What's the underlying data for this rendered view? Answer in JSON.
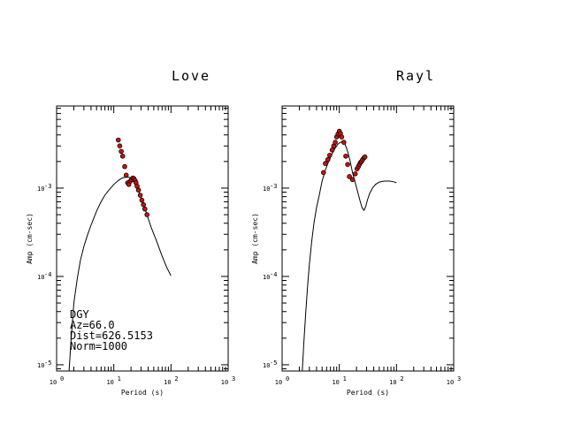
{
  "chart_data": [
    {
      "type": "scatter",
      "title": "Love",
      "xlabel": "Period (s)",
      "ylabel": "Amp (cm-sec)",
      "xscale": "log",
      "yscale": "log",
      "xlim": [
        1,
        1000
      ],
      "ylim": [
        8.5e-06,
        0.0085
      ],
      "xticks": [
        {
          "value": 1,
          "base": "10",
          "exp": "0"
        },
        {
          "value": 10,
          "base": "10",
          "exp": "1"
        },
        {
          "value": 100,
          "base": "10",
          "exp": "2"
        },
        {
          "value": 1000,
          "base": "10",
          "exp": "3"
        }
      ],
      "yticks": [
        {
          "value": 1e-05,
          "base": "10",
          "exp": "-5"
        },
        {
          "value": 0.0001,
          "base": "10",
          "exp": "-4"
        },
        {
          "value": 0.001,
          "base": "10",
          "exp": "-3"
        }
      ],
      "annotation": [
        "DGY",
        "Az=66.0",
        "Dist=626.5153",
        "Norm=1000"
      ],
      "marker_color": "#cc1111",
      "series": [
        {
          "kind": "line",
          "x": [
            1.65,
            1.8,
            2.0,
            2.3,
            2.6,
            3.0,
            3.5,
            4.0,
            5.0,
            6.0,
            7.0,
            8.0,
            10.0,
            12.0,
            14.0,
            16.0,
            18.0,
            20.0,
            22.0,
            25.0,
            28.0,
            32.0,
            38.0,
            45.0,
            55.0,
            70.0,
            85.0,
            100.0
          ],
          "y": [
            8.5e-06,
            2e-05,
            5e-05,
            9.5e-05,
            0.00015,
            0.00022,
            0.0003,
            0.00038,
            0.00055,
            0.0007,
            0.00083,
            0.00093,
            0.0011,
            0.00122,
            0.0013,
            0.00133,
            0.00133,
            0.0013,
            0.0012,
            0.00105,
            0.00088,
            0.0007,
            0.0005,
            0.00036,
            0.00026,
            0.00017,
            0.000125,
            0.000102
          ]
        },
        {
          "kind": "points",
          "x": [
            12.0,
            12.7,
            13.5,
            14.3,
            15.5,
            16.5,
            17.5,
            18.3,
            19.5,
            20.5,
            21.5,
            22.5,
            23.5,
            24.5,
            25.5,
            27.0,
            29.0,
            31.0,
            33.0,
            35.0,
            38.0
          ],
          "y": [
            0.0035,
            0.003,
            0.0026,
            0.0023,
            0.00175,
            0.0014,
            0.00115,
            0.0011,
            0.0012,
            0.00125,
            0.0013,
            0.00128,
            0.00122,
            0.00115,
            0.00105,
            0.00095,
            0.00083,
            0.00073,
            0.00065,
            0.00058,
            0.0005
          ]
        }
      ]
    },
    {
      "type": "scatter",
      "title": "Rayl",
      "xlabel": "Period (s)",
      "ylabel": "Amp (cm-sec)",
      "xscale": "log",
      "yscale": "log",
      "xlim": [
        1,
        1000
      ],
      "ylim": [
        8.5e-06,
        0.0085
      ],
      "xticks": [
        {
          "value": 1,
          "base": "10",
          "exp": "0"
        },
        {
          "value": 10,
          "base": "10",
          "exp": "1"
        },
        {
          "value": 100,
          "base": "10",
          "exp": "2"
        },
        {
          "value": 1000,
          "base": "10",
          "exp": "3"
        }
      ],
      "yticks": [
        {
          "value": 1e-05,
          "base": "10",
          "exp": "-5"
        },
        {
          "value": 0.0001,
          "base": "10",
          "exp": "-4"
        },
        {
          "value": 0.001,
          "base": "10",
          "exp": "-3"
        }
      ],
      "annotation": [],
      "marker_color": "#cc1111",
      "series": [
        {
          "kind": "line",
          "x": [
            2.25,
            2.4,
            2.6,
            2.8,
            3.0,
            3.3,
            3.6,
            4.0,
            4.5,
            5.0,
            5.7,
            6.5,
            7.5,
            8.5,
            9.5,
            10.5,
            11.5,
            12.5,
            14.0,
            15.5,
            17.0,
            19.0,
            21.0,
            23.0,
            25.0,
            27.0,
            29.0,
            31.0,
            34.0,
            38.0,
            43.0,
            50.0,
            60.0,
            75.0,
            90.0,
            100.0
          ],
          "y": [
            8.5e-06,
            1.8e-05,
            4e-05,
            8e-05,
            0.00014,
            0.00025,
            0.0004,
            0.0006,
            0.00085,
            0.0012,
            0.0016,
            0.002,
            0.00245,
            0.00285,
            0.00315,
            0.0033,
            0.00335,
            0.0032,
            0.0026,
            0.002,
            0.0015,
            0.00115,
            0.0009,
            0.00072,
            0.0006,
            0.00056,
            0.00062,
            0.00073,
            0.00087,
            0.001,
            0.0011,
            0.00117,
            0.0012,
            0.0012,
            0.00118,
            0.00115
          ]
        },
        {
          "kind": "points",
          "x": [
            5.3,
            5.7,
            6.3,
            6.8,
            7.5,
            8.0,
            8.5,
            9.0,
            9.5,
            10.0,
            10.5,
            11.0,
            12.0,
            13.0,
            14.0,
            15.0,
            17.0,
            19.0,
            20.5,
            21.5,
            22.5,
            23.5,
            24.5,
            25.5,
            27.0,
            28.0
          ],
          "y": [
            0.0015,
            0.0019,
            0.0021,
            0.00235,
            0.0027,
            0.003,
            0.0033,
            0.0038,
            0.0041,
            0.0044,
            0.00415,
            0.0038,
            0.0033,
            0.0023,
            0.00185,
            0.00135,
            0.00125,
            0.00145,
            0.00165,
            0.00175,
            0.00185,
            0.00195,
            0.002,
            0.0021,
            0.0022,
            0.00225
          ]
        }
      ]
    }
  ]
}
